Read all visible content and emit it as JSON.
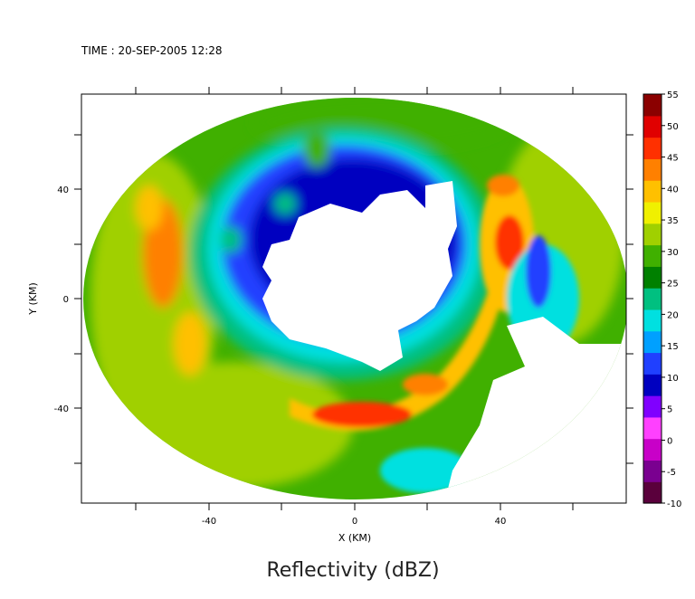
{
  "header": {
    "time_label": "TIME : 20-SEP-2005 12:28"
  },
  "caption": "Reflectivity (dBZ)",
  "chart_data": {
    "type": "heatmap",
    "title": "",
    "xlabel": "X (KM)",
    "ylabel": "Y (KM)",
    "xlim": [
      -75,
      75
    ],
    "ylim": [
      -75,
      75
    ],
    "x_ticks": [
      -40,
      0,
      40
    ],
    "y_ticks": [
      40,
      0,
      -40
    ],
    "x_tick_labels": [
      "-40",
      "0",
      "40"
    ],
    "y_tick_labels": [
      "40",
      "0",
      "-40"
    ],
    "grid": false,
    "colorbar": {
      "unit": "dBZ",
      "min": -10,
      "max": 55,
      "ticks": [
        55,
        50,
        45,
        40,
        35,
        30,
        25,
        20,
        15,
        10,
        5,
        0,
        -5,
        -10
      ],
      "tick_labels": [
        "55",
        "50",
        "45",
        "40",
        "35",
        "30",
        "25",
        "20",
        "15",
        "10",
        "5",
        "0",
        "-5",
        "-10"
      ],
      "colors": [
        "#5a003c",
        "#7a0090",
        "#c800c8",
        "#ff40ff",
        "#8000ff",
        "#0000c0",
        "#2040ff",
        "#00a0ff",
        "#00e0e0",
        "#00c080",
        "#008000",
        "#40b000",
        "#a0d000",
        "#f0f000",
        "#ffc000",
        "#ff8000",
        "#ff3000",
        "#e00000",
        "#8b0000"
      ]
    },
    "reflectivity_field": {
      "description_units": "dBZ",
      "echo_free_eye_center_km": [
        3,
        5
      ],
      "features": [
        {
          "name": "eyewall-inner-weak-band",
          "value": 12
        },
        {
          "name": "south-eyewall-max",
          "value": 46
        },
        {
          "name": "east-rainband-max",
          "value": 44
        },
        {
          "name": "west-rainband-max",
          "value": 42
        },
        {
          "name": "outer-stratiform",
          "value": 32
        }
      ]
    }
  }
}
